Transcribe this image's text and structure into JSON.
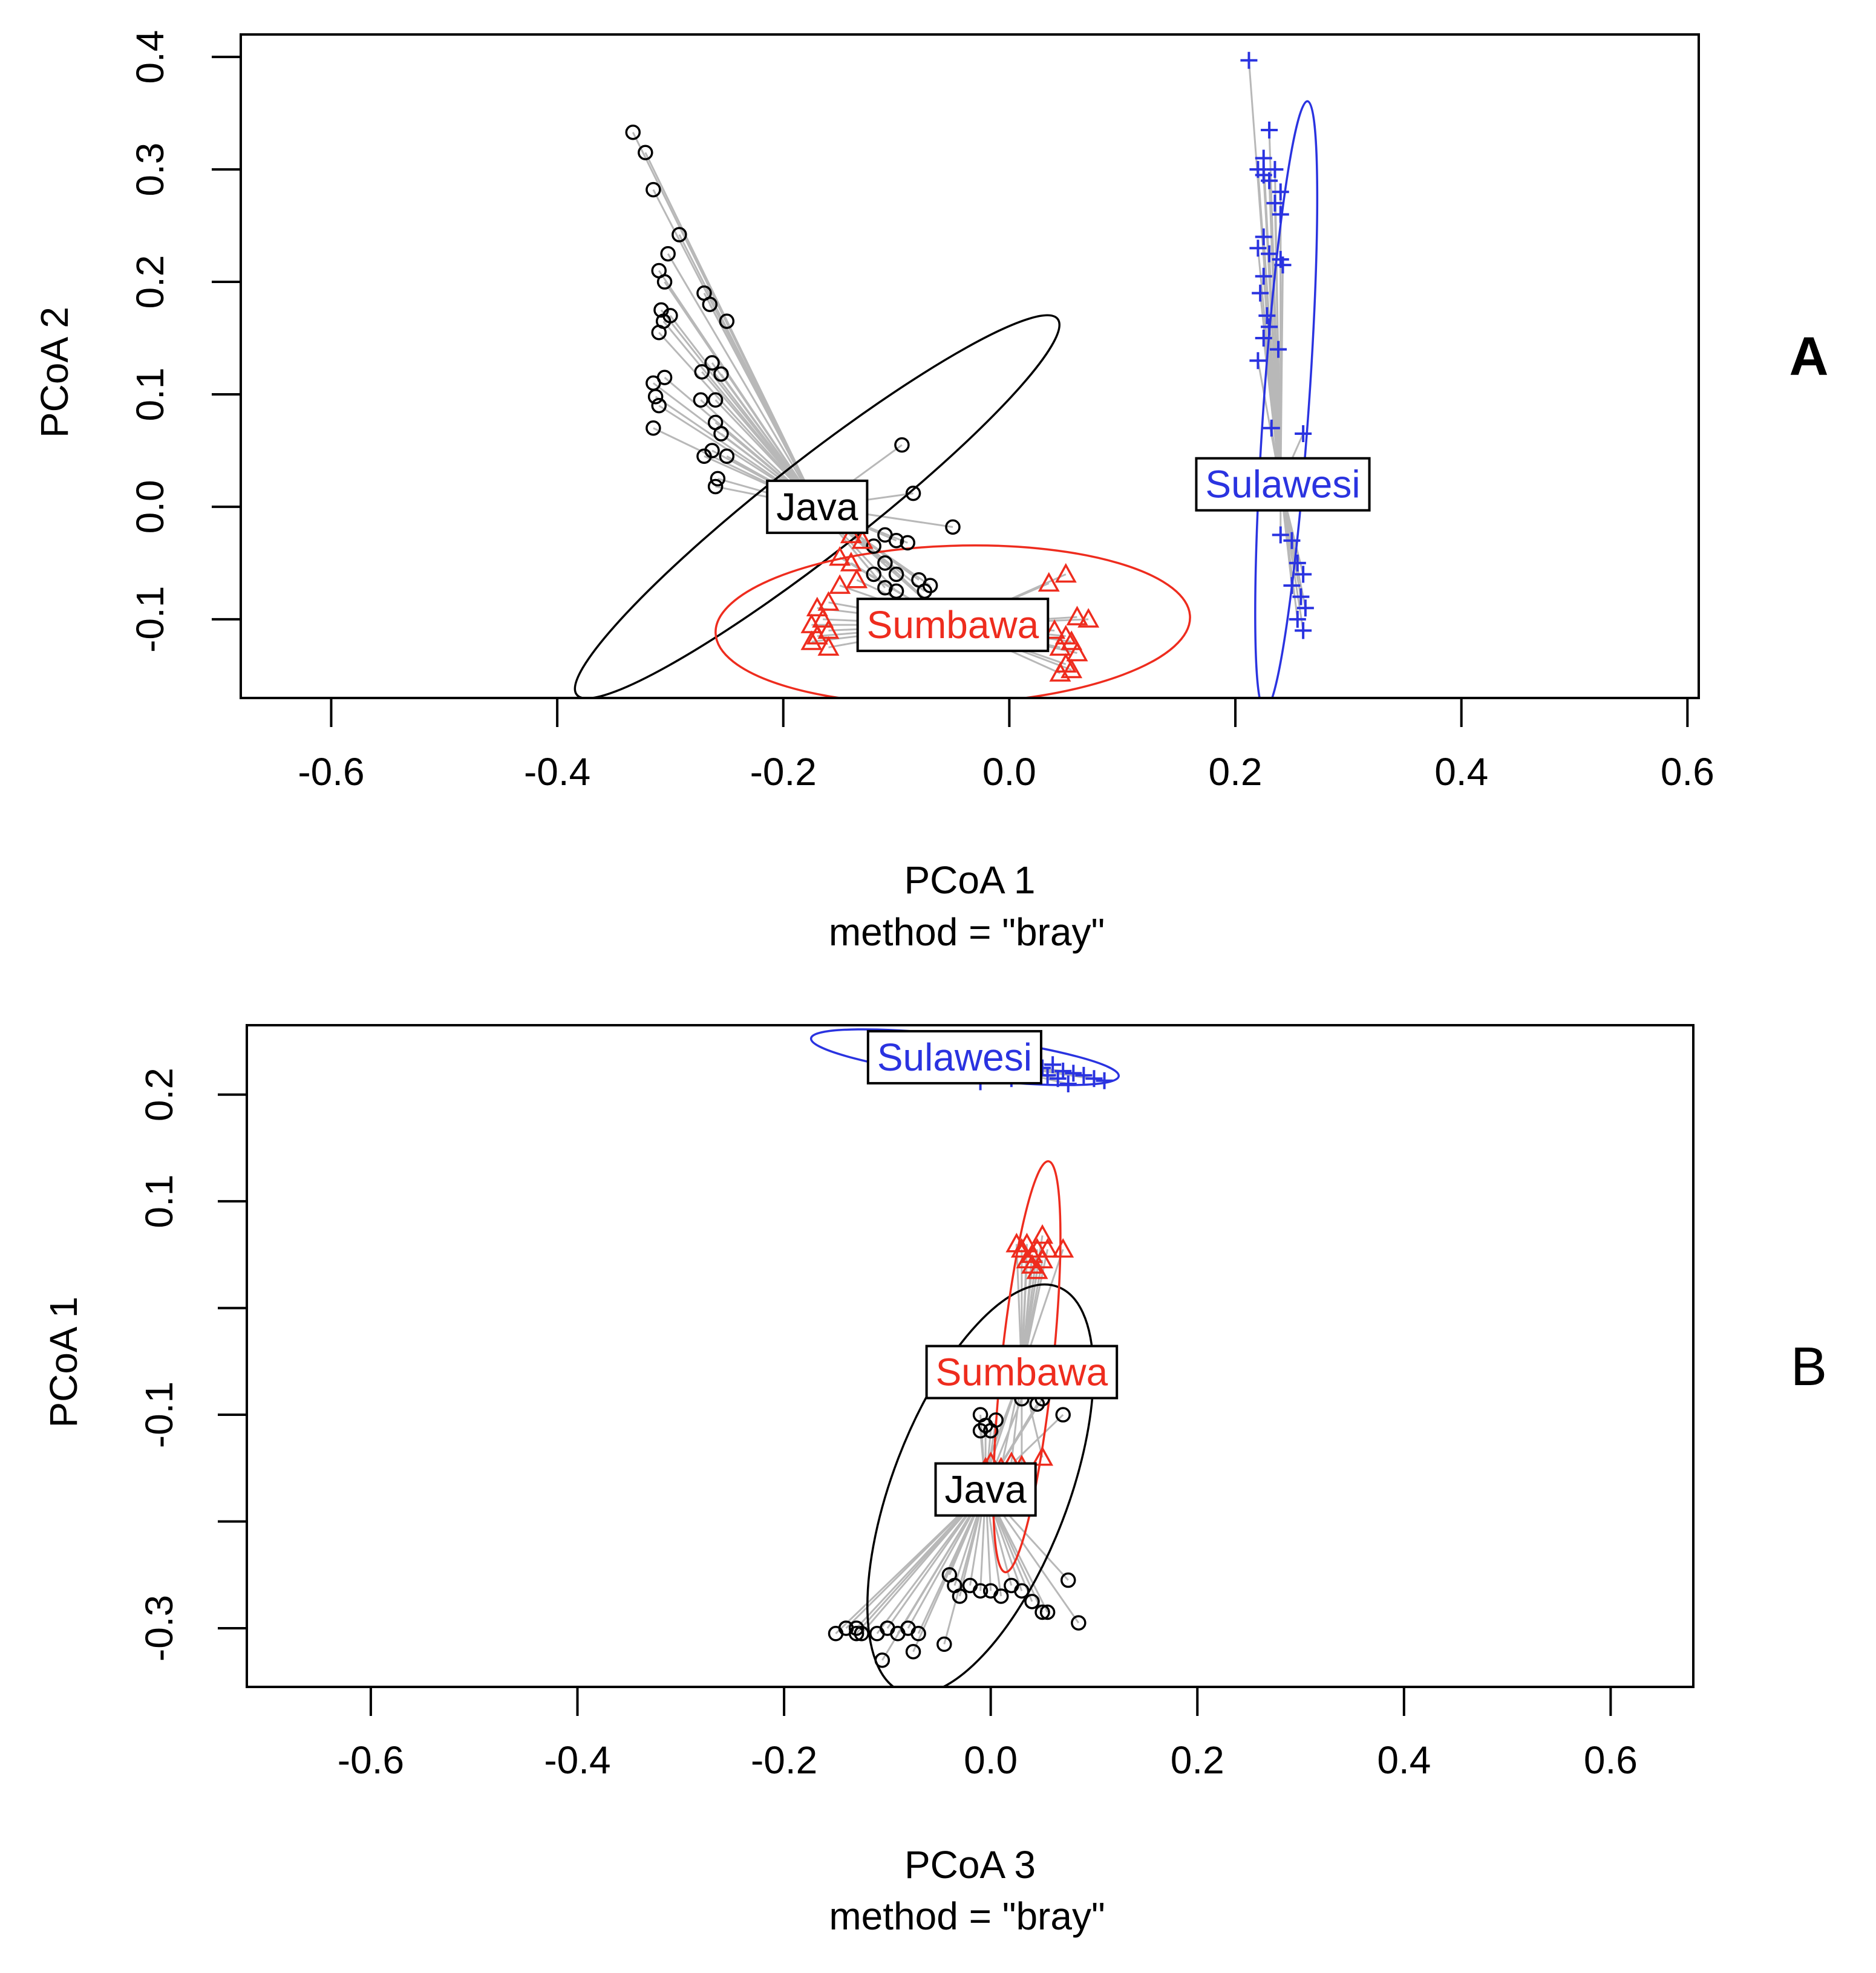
{
  "chart_data": [
    {
      "type": "scatter",
      "panel": "A",
      "panel_bold": true,
      "xlabel": "PCoA 1",
      "ylabel": "PCoA 2",
      "method_label": "method = \"bray\"",
      "xlim": [
        -0.68,
        0.61
      ],
      "ylim": [
        -0.17,
        0.42
      ],
      "xticks": [
        -0.6,
        -0.4,
        -0.2,
        0.0,
        0.2,
        0.4,
        0.6
      ],
      "xtick_labels": [
        "-0.6",
        "-0.4",
        "-0.2",
        "0.0",
        "0.2",
        "0.4",
        "0.6"
      ],
      "yticks": [
        -0.1,
        0.0,
        0.1,
        0.2,
        0.3,
        0.4
      ],
      "ytick_labels": [
        "-0.1",
        "0.0",
        "0.1",
        "0.2",
        "0.3",
        "0.4"
      ],
      "groups": [
        {
          "name": "Java",
          "color": "#000000",
          "marker": "circle",
          "centroid": [
            -0.17,
            0.0
          ],
          "ellipse": {
            "center": [
              -0.17,
              0.0
            ],
            "rx": 0.27,
            "ry": 0.042,
            "angle": -38
          },
          "label_pos": [
            -0.17,
            0.0
          ],
          "points": [
            [
              -0.333,
              0.333
            ],
            [
              -0.322,
              0.315
            ],
            [
              -0.315,
              0.282
            ],
            [
              -0.292,
              0.242
            ],
            [
              -0.302,
              0.225
            ],
            [
              -0.31,
              0.21
            ],
            [
              -0.305,
              0.2
            ],
            [
              -0.308,
              0.175
            ],
            [
              -0.306,
              0.165
            ],
            [
              -0.31,
              0.155
            ],
            [
              -0.3,
              0.17
            ],
            [
              -0.27,
              0.19
            ],
            [
              -0.265,
              0.18
            ],
            [
              -0.25,
              0.165
            ],
            [
              -0.263,
              0.128
            ],
            [
              -0.255,
              0.118
            ],
            [
              -0.272,
              0.12
            ],
            [
              -0.305,
              0.115
            ],
            [
              -0.315,
              0.11
            ],
            [
              -0.313,
              0.098
            ],
            [
              -0.31,
              0.09
            ],
            [
              -0.315,
              0.07
            ],
            [
              -0.273,
              0.095
            ],
            [
              -0.26,
              0.095
            ],
            [
              -0.26,
              0.075
            ],
            [
              -0.255,
              0.065
            ],
            [
              -0.263,
              0.05
            ],
            [
              -0.27,
              0.045
            ],
            [
              -0.25,
              0.045
            ],
            [
              -0.258,
              0.025
            ],
            [
              -0.26,
              0.018
            ],
            [
              -0.095,
              0.055
            ],
            [
              -0.085,
              0.012
            ],
            [
              -0.05,
              -0.018
            ],
            [
              -0.11,
              -0.025
            ],
            [
              -0.1,
              -0.03
            ],
            [
              -0.09,
              -0.032
            ],
            [
              -0.12,
              -0.035
            ],
            [
              -0.11,
              -0.05
            ],
            [
              -0.1,
              -0.06
            ],
            [
              -0.12,
              -0.06
            ],
            [
              -0.08,
              -0.065
            ],
            [
              -0.11,
              -0.072
            ],
            [
              -0.1,
              -0.075
            ],
            [
              -0.07,
              -0.07
            ],
            [
              -0.075,
              -0.075
            ]
          ]
        },
        {
          "name": "Sumbawa",
          "color": "#ee2c1e",
          "marker": "triangle",
          "centroid": [
            -0.05,
            -0.105
          ],
          "ellipse": {
            "center": [
              -0.05,
              -0.105
            ],
            "rx": 0.21,
            "ry": 0.07,
            "angle": -2
          },
          "label_pos": [
            -0.05,
            -0.105
          ],
          "points": [
            [
              -0.14,
              -0.025
            ],
            [
              -0.13,
              -0.03
            ],
            [
              -0.15,
              -0.045
            ],
            [
              -0.14,
              -0.05
            ],
            [
              -0.135,
              -0.065
            ],
            [
              -0.15,
              -0.07
            ],
            [
              -0.16,
              -0.085
            ],
            [
              -0.17,
              -0.09
            ],
            [
              -0.165,
              -0.1
            ],
            [
              -0.175,
              -0.105
            ],
            [
              -0.16,
              -0.11
            ],
            [
              -0.17,
              -0.115
            ],
            [
              -0.175,
              -0.12
            ],
            [
              -0.16,
              -0.125
            ],
            [
              0.05,
              -0.06
            ],
            [
              0.035,
              -0.068
            ],
            [
              0.06,
              -0.098
            ],
            [
              0.07,
              -0.1
            ],
            [
              0.04,
              -0.11
            ],
            [
              0.05,
              -0.115
            ],
            [
              0.055,
              -0.12
            ],
            [
              0.045,
              -0.125
            ],
            [
              0.06,
              -0.13
            ],
            [
              0.05,
              -0.14
            ],
            [
              0.055,
              -0.145
            ],
            [
              0.045,
              -0.148
            ]
          ]
        },
        {
          "name": "Sulawesi",
          "color": "#2a33e0",
          "marker": "plus",
          "centroid": [
            0.24,
            0.02
          ],
          "ellipse": {
            "center": [
              0.245,
              0.09
            ],
            "rx": 0.27,
            "ry": 0.02,
            "angle": -86
          },
          "label_pos": [
            0.242,
            0.02
          ],
          "points": [
            [
              0.212,
              0.397
            ],
            [
              0.23,
              0.335
            ],
            [
              0.225,
              0.31
            ],
            [
              0.22,
              0.3
            ],
            [
              0.225,
              0.295
            ],
            [
              0.23,
              0.29
            ],
            [
              0.235,
              0.3
            ],
            [
              0.24,
              0.28
            ],
            [
              0.235,
              0.27
            ],
            [
              0.24,
              0.26
            ],
            [
              0.225,
              0.24
            ],
            [
              0.22,
              0.23
            ],
            [
              0.23,
              0.225
            ],
            [
              0.24,
              0.22
            ],
            [
              0.242,
              0.215
            ],
            [
              0.225,
              0.205
            ],
            [
              0.222,
              0.19
            ],
            [
              0.228,
              0.17
            ],
            [
              0.23,
              0.16
            ],
            [
              0.225,
              0.15
            ],
            [
              0.238,
              0.14
            ],
            [
              0.22,
              0.13
            ],
            [
              0.232,
              0.07
            ],
            [
              0.26,
              0.065
            ],
            [
              0.24,
              -0.025
            ],
            [
              0.25,
              -0.03
            ],
            [
              0.255,
              -0.05
            ],
            [
              0.26,
              -0.06
            ],
            [
              0.25,
              -0.07
            ],
            [
              0.258,
              -0.08
            ],
            [
              0.262,
              -0.09
            ],
            [
              0.255,
              -0.1
            ],
            [
              0.26,
              -0.11
            ]
          ]
        }
      ]
    },
    {
      "type": "scatter",
      "panel": "B",
      "panel_bold": false,
      "xlabel": "PCoA 3",
      "ylabel": "PCoA 1",
      "method_label": "method = \"bray\"",
      "xlim": [
        -0.72,
        0.68
      ],
      "ylim": [
        -0.355,
        0.265
      ],
      "xticks": [
        -0.6,
        -0.4,
        -0.2,
        0.0,
        0.2,
        0.4,
        0.6
      ],
      "xtick_labels": [
        "-0.6",
        "-0.4",
        "-0.2",
        "0.0",
        "0.2",
        "0.4",
        "0.6"
      ],
      "yticks": [
        -0.3,
        -0.2,
        -0.1,
        0.0,
        0.1,
        0.2
      ],
      "ytick_labels": [
        "-0.3",
        "",
        "-0.1",
        "",
        "0.1",
        "0.2"
      ],
      "groups": [
        {
          "name": "Java",
          "color": "#000000",
          "marker": "circle",
          "centroid": [
            -0.005,
            -0.17
          ],
          "ellipse": {
            "center": [
              -0.01,
              -0.17
            ],
            "rx": 0.21,
            "ry": 0.085,
            "angle": -69
          },
          "label_pos": [
            -0.005,
            -0.17
          ],
          "points": [
            [
              -0.15,
              -0.305
            ],
            [
              -0.14,
              -0.3
            ],
            [
              -0.13,
              -0.305
            ],
            [
              -0.13,
              -0.3
            ],
            [
              -0.125,
              -0.305
            ],
            [
              -0.1,
              -0.3
            ],
            [
              -0.09,
              -0.305
            ],
            [
              -0.08,
              -0.3
            ],
            [
              -0.07,
              -0.305
            ],
            [
              -0.11,
              -0.305
            ],
            [
              -0.105,
              -0.33
            ],
            [
              -0.075,
              -0.322
            ],
            [
              -0.045,
              -0.315
            ],
            [
              -0.04,
              -0.25
            ],
            [
              -0.035,
              -0.26
            ],
            [
              -0.03,
              -0.27
            ],
            [
              -0.02,
              -0.26
            ],
            [
              -0.01,
              -0.265
            ],
            [
              0.0,
              -0.265
            ],
            [
              0.01,
              -0.27
            ],
            [
              0.02,
              -0.26
            ],
            [
              0.03,
              -0.265
            ],
            [
              0.04,
              -0.275
            ],
            [
              0.05,
              -0.285
            ],
            [
              0.055,
              -0.285
            ],
            [
              0.075,
              -0.255
            ],
            [
              0.085,
              -0.295
            ],
            [
              -0.01,
              -0.1
            ],
            [
              -0.005,
              -0.11
            ],
            [
              0.005,
              -0.105
            ],
            [
              0.0,
              -0.115
            ],
            [
              -0.01,
              -0.115
            ],
            [
              0.03,
              -0.085
            ],
            [
              0.045,
              -0.09
            ],
            [
              0.05,
              -0.085
            ],
            [
              0.07,
              -0.1
            ]
          ]
        },
        {
          "name": "Sumbawa",
          "color": "#ee2c1e",
          "marker": "triangle",
          "centroid": [
            0.03,
            -0.06
          ],
          "ellipse": {
            "center": [
              0.035,
              -0.055
            ],
            "rx": 0.2,
            "ry": 0.025,
            "angle": -84
          },
          "label_pos": [
            0.03,
            -0.06
          ],
          "points": [
            [
              0.025,
              0.06
            ],
            [
              0.03,
              0.055
            ],
            [
              0.035,
              0.06
            ],
            [
              0.04,
              0.05
            ],
            [
              0.045,
              0.055
            ],
            [
              0.05,
              0.045
            ],
            [
              0.055,
              0.055
            ],
            [
              0.05,
              0.068
            ],
            [
              0.07,
              0.055
            ],
            [
              0.04,
              0.04
            ],
            [
              0.035,
              0.045
            ],
            [
              0.045,
              0.035
            ],
            [
              -0.005,
              -0.15
            ],
            [
              0.0,
              -0.145
            ],
            [
              0.01,
              -0.15
            ],
            [
              0.02,
              -0.145
            ],
            [
              0.03,
              -0.148
            ],
            [
              0.05,
              -0.14
            ]
          ]
        },
        {
          "name": "Sulawesi",
          "color": "#2a33e0",
          "marker": "plus",
          "centroid": [
            -0.035,
            0.235
          ],
          "ellipse": {
            "center": [
              -0.025,
              0.235
            ],
            "rx": 0.15,
            "ry": 0.02,
            "angle": 7
          },
          "label_pos": [
            -0.035,
            0.235
          ],
          "points": [
            [
              0.04,
              0.23
            ],
            [
              0.05,
              0.225
            ],
            [
              0.06,
              0.228
            ],
            [
              0.07,
              0.222
            ],
            [
              0.08,
              0.22
            ],
            [
              0.09,
              0.218
            ],
            [
              0.1,
              0.215
            ],
            [
              0.11,
              0.213
            ],
            [
              0.065,
              0.215
            ],
            [
              0.055,
              0.218
            ],
            [
              0.02,
              0.215
            ],
            [
              -0.01,
              0.212
            ],
            [
              0.03,
              0.22
            ],
            [
              0.075,
              0.21
            ]
          ]
        }
      ]
    }
  ]
}
